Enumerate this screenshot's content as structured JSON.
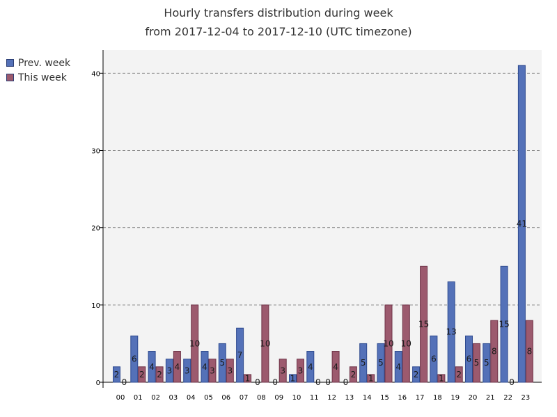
{
  "title": {
    "line1": "Hourly transfers distribution during week",
    "line2": "from 2017-12-04 to 2017-12-10 (UTC timezone)"
  },
  "chart_data": {
    "type": "bar",
    "title": "Hourly transfers distribution during week from 2017-12-04 to 2017-12-10 (UTC timezone)",
    "categories": [
      "00",
      "01",
      "02",
      "03",
      "04",
      "05",
      "06",
      "07",
      "08",
      "09",
      "10",
      "11",
      "12",
      "13",
      "14",
      "15",
      "16",
      "17",
      "18",
      "19",
      "20",
      "21",
      "22",
      "23"
    ],
    "series": [
      {
        "name": "Prev. week",
        "color": "#5471b8",
        "values": [
          2,
          6,
          4,
          3,
          3,
          4,
          5,
          7,
          0,
          0,
          1,
          4,
          0,
          0,
          5,
          5,
          4,
          2,
          6,
          13,
          6,
          5,
          15,
          41
        ]
      },
      {
        "name": "This week",
        "color": "#9c5a6e",
        "values": [
          0,
          2,
          2,
          4,
          10,
          3,
          3,
          1,
          10,
          3,
          3,
          0,
          4,
          2,
          1,
          10,
          10,
          15,
          1,
          2,
          5,
          8,
          0,
          8
        ]
      }
    ],
    "y_ticks": [
      "0",
      "10",
      "20",
      "30",
      "40"
    ],
    "ylim": [
      0,
      43
    ],
    "grid": true,
    "legend_position": "top-left, outside plot"
  }
}
